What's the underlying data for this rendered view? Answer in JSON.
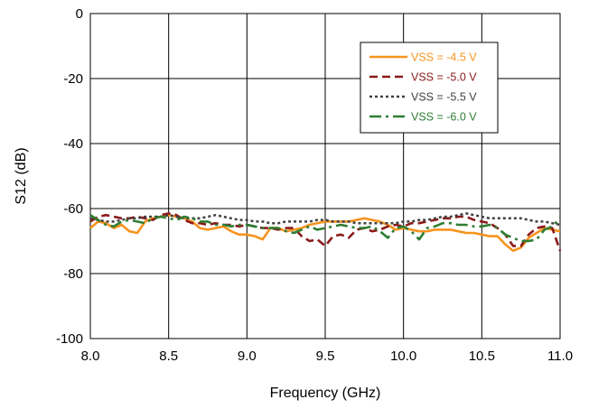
{
  "chart_data": {
    "type": "line",
    "title": "",
    "xlabel": "Frequency (GHz)",
    "ylabel": "S12 (dB)",
    "xlim": [
      8.0,
      11.0
    ],
    "ylim": [
      -100,
      0
    ],
    "xticks": [
      "8.0",
      "8.5",
      "9.0",
      "9.5",
      "10.0",
      "10.5",
      "11.0"
    ],
    "yticks": [
      "0",
      "-20",
      "-40",
      "-60",
      "-80",
      "-100"
    ],
    "grid": true,
    "legend_position": "top-right",
    "series": [
      {
        "name": "VSS = -4.5 V",
        "color": "#F7931E",
        "style": "solid",
        "x": [
          8.0,
          8.05,
          8.1,
          8.15,
          8.2,
          8.25,
          8.3,
          8.35,
          8.4,
          8.45,
          8.5,
          8.55,
          8.6,
          8.65,
          8.7,
          8.75,
          8.8,
          8.85,
          8.9,
          8.95,
          9.0,
          9.05,
          9.1,
          9.15,
          9.2,
          9.25,
          9.3,
          9.35,
          9.4,
          9.45,
          9.5,
          9.55,
          9.6,
          9.65,
          9.7,
          9.75,
          9.8,
          9.85,
          9.9,
          9.95,
          10.0,
          10.05,
          10.1,
          10.15,
          10.2,
          10.25,
          10.3,
          10.35,
          10.4,
          10.45,
          10.5,
          10.55,
          10.6,
          10.65,
          10.7,
          10.75,
          10.8,
          10.85,
          10.9,
          10.95,
          11.0
        ],
        "y": [
          -66,
          -64,
          -64.5,
          -66,
          -65,
          -67,
          -67.5,
          -64,
          -63,
          -62.5,
          -62,
          -62.5,
          -63,
          -64,
          -66,
          -66.5,
          -66,
          -65.5,
          -67,
          -68,
          -68,
          -68.5,
          -69.5,
          -66,
          -66,
          -67,
          -66.5,
          -66,
          -65,
          -64.5,
          -64,
          -64,
          -64,
          -64,
          -63.5,
          -63,
          -63.5,
          -64,
          -65,
          -66.5,
          -66,
          -66.5,
          -67,
          -67,
          -66.5,
          -66.5,
          -66.5,
          -67,
          -67.5,
          -67.5,
          -68,
          -68.5,
          -68.5,
          -71,
          -73,
          -72,
          -69,
          -67.5,
          -66,
          -66.5,
          -67
        ]
      },
      {
        "name": "VSS = -5.0 V",
        "color": "#8B1A1A",
        "style": "dashed",
        "x": [
          8.0,
          8.05,
          8.1,
          8.15,
          8.2,
          8.25,
          8.3,
          8.35,
          8.4,
          8.45,
          8.5,
          8.55,
          8.6,
          8.65,
          8.7,
          8.75,
          8.8,
          8.85,
          8.9,
          8.95,
          9.0,
          9.05,
          9.1,
          9.15,
          9.2,
          9.25,
          9.3,
          9.35,
          9.4,
          9.45,
          9.5,
          9.55,
          9.6,
          9.65,
          9.7,
          9.75,
          9.8,
          9.85,
          9.9,
          9.95,
          10.0,
          10.05,
          10.1,
          10.15,
          10.2,
          10.25,
          10.3,
          10.35,
          10.4,
          10.45,
          10.5,
          10.55,
          10.6,
          10.65,
          10.7,
          10.75,
          10.8,
          10.85,
          10.9,
          10.95,
          11.0
        ],
        "y": [
          -64,
          -62.5,
          -62,
          -62.5,
          -63,
          -63,
          -62.5,
          -63,
          -63.5,
          -62,
          -61.5,
          -62,
          -63.5,
          -64.5,
          -64.5,
          -65,
          -64.5,
          -65,
          -65,
          -65.5,
          -65,
          -65.5,
          -66,
          -66,
          -66.5,
          -66,
          -66,
          -68.5,
          -70,
          -69.5,
          -71.5,
          -68.5,
          -68,
          -69,
          -66.5,
          -66,
          -67,
          -66.5,
          -65.5,
          -65,
          -65.5,
          -64.5,
          -64.5,
          -64,
          -63.5,
          -63,
          -63,
          -62.5,
          -62.5,
          -63.5,
          -64,
          -64.5,
          -66,
          -68,
          -71.5,
          -71.5,
          -68,
          -66,
          -65.5,
          -66,
          -73
        ]
      },
      {
        "name": "VSS = -5.5 V",
        "color": "#404040",
        "style": "dotted",
        "x": [
          8.0,
          8.05,
          8.1,
          8.15,
          8.2,
          8.25,
          8.3,
          8.35,
          8.4,
          8.45,
          8.5,
          8.55,
          8.6,
          8.65,
          8.7,
          8.75,
          8.8,
          8.85,
          8.9,
          8.95,
          9.0,
          9.05,
          9.1,
          9.15,
          9.2,
          9.25,
          9.3,
          9.35,
          9.4,
          9.45,
          9.5,
          9.55,
          9.6,
          9.65,
          9.7,
          9.75,
          9.8,
          9.85,
          9.9,
          9.95,
          10.0,
          10.05,
          10.1,
          10.15,
          10.2,
          10.25,
          10.3,
          10.35,
          10.4,
          10.45,
          10.5,
          10.55,
          10.6,
          10.65,
          10.7,
          10.75,
          10.8,
          10.85,
          10.9,
          10.95,
          11.0
        ],
        "y": [
          -63,
          -63.5,
          -64,
          -64,
          -63.5,
          -63,
          -63,
          -62.5,
          -62.5,
          -62.5,
          -62,
          -62.5,
          -63,
          -63,
          -63,
          -62.5,
          -62,
          -62.5,
          -63,
          -63.5,
          -63.5,
          -64,
          -64,
          -64.5,
          -64.5,
          -64,
          -64,
          -64,
          -64,
          -63.5,
          -63.5,
          -64,
          -64,
          -64,
          -64.5,
          -64.5,
          -64.5,
          -64.5,
          -64.5,
          -64.5,
          -64,
          -64,
          -63.5,
          -63.5,
          -63,
          -62.5,
          -62.5,
          -62,
          -61.5,
          -62,
          -62.5,
          -63,
          -63,
          -63,
          -63,
          -63,
          -63.5,
          -64,
          -64,
          -64.5,
          -65
        ]
      },
      {
        "name": "VSS = -6.0 V",
        "color": "#2E7D32",
        "style": "dash-dot",
        "x": [
          8.0,
          8.05,
          8.1,
          8.15,
          8.2,
          8.25,
          8.3,
          8.35,
          8.4,
          8.45,
          8.5,
          8.55,
          8.6,
          8.65,
          8.7,
          8.75,
          8.8,
          8.85,
          8.9,
          8.95,
          9.0,
          9.05,
          9.1,
          9.15,
          9.2,
          9.25,
          9.3,
          9.35,
          9.4,
          9.45,
          9.5,
          9.55,
          9.6,
          9.65,
          9.7,
          9.75,
          9.8,
          9.85,
          9.9,
          9.95,
          10.0,
          10.05,
          10.1,
          10.15,
          10.2,
          10.25,
          10.3,
          10.35,
          10.4,
          10.45,
          10.5,
          10.55,
          10.6,
          10.65,
          10.7,
          10.75,
          10.8,
          10.85,
          10.9,
          10.95,
          11.0
        ],
        "y": [
          -62,
          -63.5,
          -65,
          -65.5,
          -64,
          -63.5,
          -64,
          -64.5,
          -63,
          -62.5,
          -63,
          -63.5,
          -62.5,
          -63,
          -64,
          -64,
          -65,
          -65,
          -65.5,
          -65,
          -65,
          -65.5,
          -66,
          -66,
          -66,
          -67,
          -67.5,
          -66.5,
          -65.5,
          -66.5,
          -66,
          -65.5,
          -65,
          -65.5,
          -66,
          -66,
          -65.5,
          -67,
          -69,
          -66,
          -65.5,
          -67,
          -69.5,
          -66,
          -65.5,
          -64.5,
          -64.5,
          -65,
          -65,
          -65.5,
          -65.5,
          -65,
          -66,
          -68,
          -69,
          -70,
          -70,
          -69.5,
          -66.5,
          -65.5,
          -63
        ]
      }
    ]
  }
}
